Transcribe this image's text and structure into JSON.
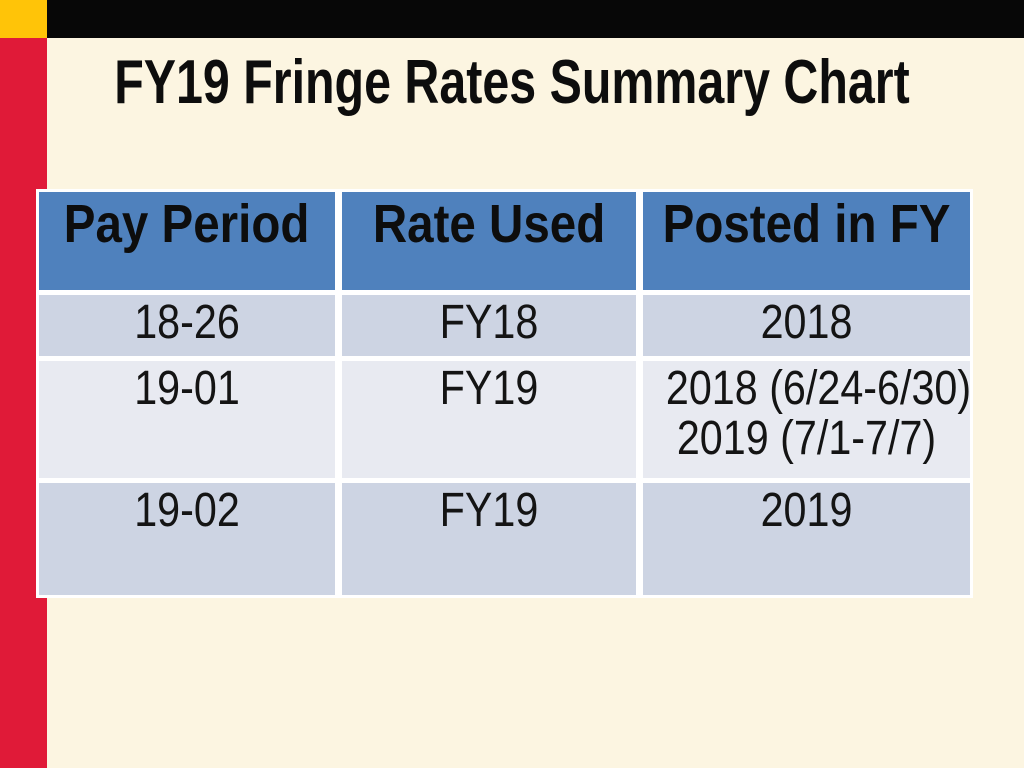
{
  "slide": {
    "title": "FY19 Fringe Rates Summary Chart",
    "colors": {
      "background_cream": "#fcf5e1",
      "top_bar_black": "#070707",
      "corner_yellow": "#ffc408",
      "stripe_red": "#e01a38",
      "table_header_blue": "#4f81bd",
      "row_band_dark": "#cdd4e3",
      "row_band_light": "#e8eaf1",
      "text_black": "#0d0d0d",
      "cell_gap_white": "#ffffff"
    },
    "table": {
      "headers": [
        "Pay Period",
        "Rate Used",
        "Posted in FY"
      ],
      "rows": [
        {
          "pay_period": "18-26",
          "rate_used": "FY18",
          "posted_in_fy": [
            "2018"
          ]
        },
        {
          "pay_period": "19-01",
          "rate_used": "FY19",
          "posted_in_fy": [
            "2018 (6/24-6/30)",
            "2019 (7/1-7/7)"
          ]
        },
        {
          "pay_period": "19-02",
          "rate_used": "FY19",
          "posted_in_fy": [
            "2019"
          ]
        }
      ]
    }
  }
}
